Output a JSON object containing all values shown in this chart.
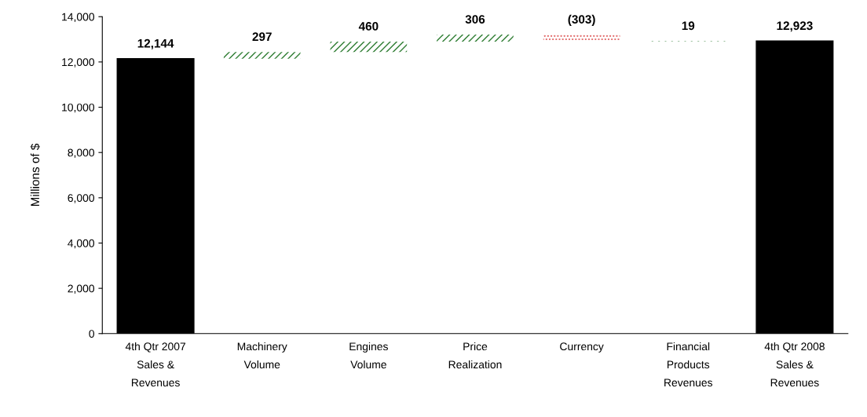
{
  "chart_data": {
    "type": "bar",
    "ylabel": "Millions of $",
    "categories": [
      "4th Qtr 2007\nSales &\nRevenues",
      "Machinery\nVolume",
      "Engines\nVolume",
      "Price\nRealization",
      "Currency",
      "Financial\nProducts\nRevenues",
      "4th Qtr 2008\nSales &\nRevenues"
    ],
    "values": [
      12144,
      297,
      460,
      306,
      -303,
      19,
      12923
    ],
    "base": [
      0,
      12144,
      12441,
      12901,
      13207,
      12904,
      0
    ],
    "colors": [
      "#000000",
      "#2e7d32",
      "#2e7d32",
      "#2e7d32",
      "#e06060",
      "#2e7d32",
      "#000000"
    ],
    "value_labels": [
      "12,144",
      "297",
      "460",
      "306",
      "(303)",
      "19",
      "12,923"
    ],
    "ylim": [
      0,
      14000
    ],
    "yticks": [
      {
        "value": 0,
        "label": "0"
      },
      {
        "value": 2000,
        "label": "2,000"
      },
      {
        "value": 4000,
        "label": "4,000"
      },
      {
        "value": 6000,
        "label": "6,000"
      },
      {
        "value": 8000,
        "label": "8,000"
      },
      {
        "value": 10000,
        "label": "10,000"
      },
      {
        "value": 12000,
        "label": "12,000"
      },
      {
        "value": 14000,
        "label": "14,000"
      }
    ],
    "grid": false
  }
}
